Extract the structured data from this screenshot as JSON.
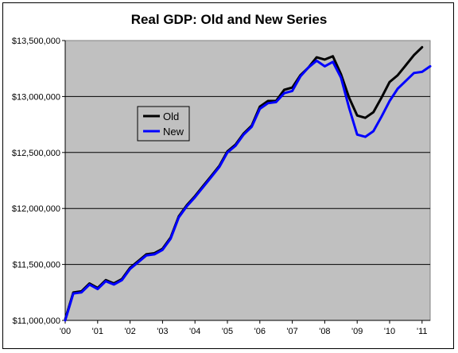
{
  "chart_data": {
    "type": "line",
    "title": "Real GDP: Old and New Series",
    "xlabel": "",
    "ylabel": "",
    "ylim": [
      11000000,
      13500000
    ],
    "xlim": [
      2000.0,
      2011.25
    ],
    "grid": "horizontal",
    "legend_position": "inside-left",
    "y_ticks": [
      11000000,
      11500000,
      12000000,
      12500000,
      13000000,
      13500000
    ],
    "y_tick_labels": [
      "$11,000,000",
      "$11,500,000",
      "$12,000,000",
      "$12,500,000",
      "$13,000,000",
      "$13,500,000"
    ],
    "x_ticks": [
      2000,
      2001,
      2002,
      2003,
      2004,
      2005,
      2006,
      2007,
      2008,
      2009,
      2010,
      2011
    ],
    "x_tick_labels": [
      "'00",
      "'01",
      "'02",
      "'03",
      "'04",
      "'05",
      "'06",
      "'07",
      "'08",
      "'09",
      "'10",
      "'11"
    ],
    "series": [
      {
        "name": "Old",
        "color": "#000000",
        "x": [
          2000.0,
          2000.25,
          2000.5,
          2000.75,
          2001.0,
          2001.25,
          2001.5,
          2001.75,
          2002.0,
          2002.25,
          2002.5,
          2002.75,
          2003.0,
          2003.25,
          2003.5,
          2003.75,
          2004.0,
          2004.25,
          2004.5,
          2004.75,
          2005.0,
          2005.25,
          2005.5,
          2005.75,
          2006.0,
          2006.25,
          2006.5,
          2006.75,
          2007.0,
          2007.25,
          2007.5,
          2007.75,
          2008.0,
          2008.25,
          2008.5,
          2008.75,
          2009.0,
          2009.25,
          2009.5,
          2009.75,
          2010.0,
          2010.25,
          2010.5,
          2010.75,
          2011.0
        ],
        "values": [
          11010000,
          11250000,
          11260000,
          11330000,
          11290000,
          11360000,
          11330000,
          11370000,
          11470000,
          11530000,
          11590000,
          11600000,
          11640000,
          11740000,
          11930000,
          12030000,
          12110000,
          12200000,
          12290000,
          12380000,
          12510000,
          12570000,
          12670000,
          12740000,
          12910000,
          12960000,
          12960000,
          13060000,
          13080000,
          13190000,
          13260000,
          13350000,
          13330000,
          13360000,
          13200000,
          12990000,
          12830000,
          12810000,
          12860000,
          12990000,
          13130000,
          13190000,
          13280000,
          13370000,
          13440000
        ]
      },
      {
        "name": "New",
        "color": "#0000ff",
        "x": [
          2000.0,
          2000.25,
          2000.5,
          2000.75,
          2001.0,
          2001.25,
          2001.5,
          2001.75,
          2002.0,
          2002.25,
          2002.5,
          2002.75,
          2003.0,
          2003.25,
          2003.5,
          2003.75,
          2004.0,
          2004.25,
          2004.5,
          2004.75,
          2005.0,
          2005.25,
          2005.5,
          2005.75,
          2006.0,
          2006.25,
          2006.5,
          2006.75,
          2007.0,
          2007.25,
          2007.5,
          2007.75,
          2008.0,
          2008.25,
          2008.5,
          2008.75,
          2009.0,
          2009.25,
          2009.5,
          2009.75,
          2010.0,
          2010.25,
          2010.5,
          2010.75,
          2011.0,
          2011.25
        ],
        "values": [
          11000000,
          11240000,
          11250000,
          11320000,
          11280000,
          11350000,
          11320000,
          11360000,
          11460000,
          11520000,
          11580000,
          11590000,
          11630000,
          11730000,
          11920000,
          12020000,
          12100000,
          12190000,
          12280000,
          12370000,
          12500000,
          12560000,
          12660000,
          12730000,
          12890000,
          12940000,
          12950000,
          13030000,
          13050000,
          13180000,
          13260000,
          13320000,
          13270000,
          13310000,
          13170000,
          12900000,
          12660000,
          12640000,
          12690000,
          12820000,
          12960000,
          13070000,
          13140000,
          13210000,
          13220000,
          13270000
        ]
      }
    ]
  }
}
